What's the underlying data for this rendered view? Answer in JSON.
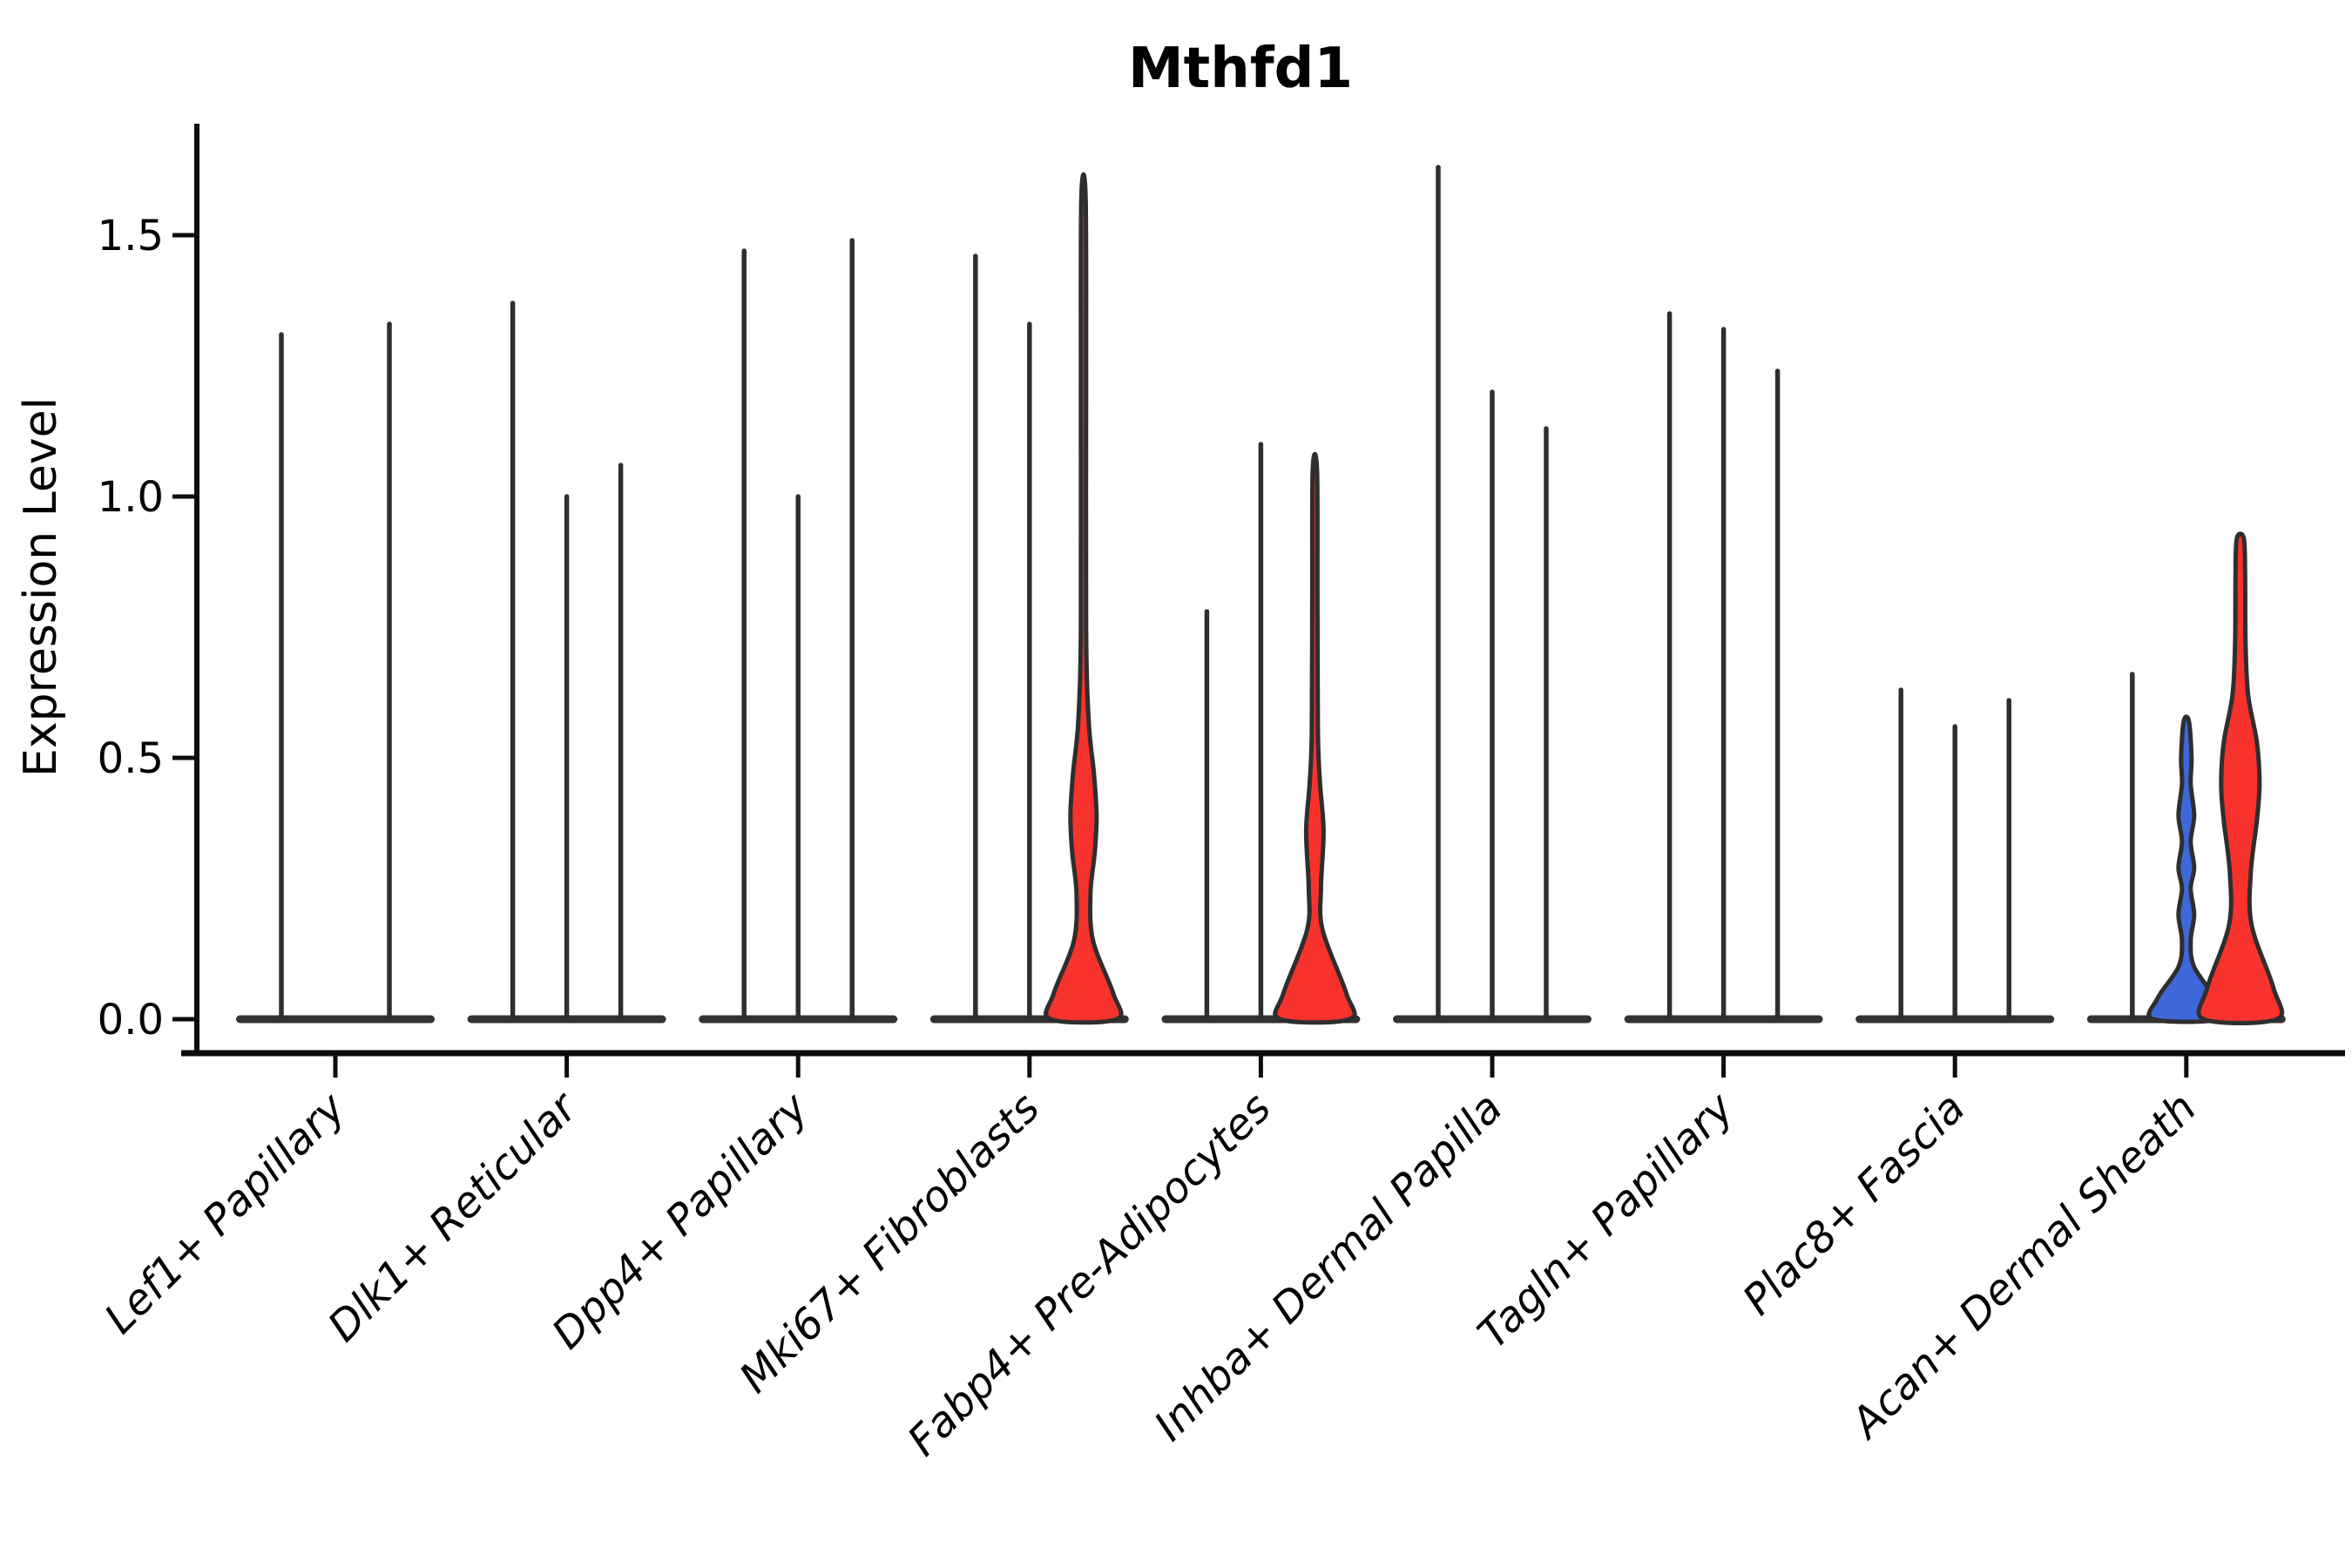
{
  "title": "Mthfd1",
  "ylabel": "Expression Level",
  "colors": {
    "red": "#f8322c",
    "blue": "#3e68da",
    "violin_stroke": "#2e2e2e",
    "spine": "#0d0d0d",
    "baseline": "#333333"
  },
  "chart_data": {
    "type": "violin",
    "title": "Mthfd1",
    "xlabel": "",
    "ylabel": "Expression Level",
    "ylim": [
      0,
      1.72
    ],
    "grid": false,
    "legend": "none",
    "yticks": [
      {
        "v": 0.0,
        "label": "0.0"
      },
      {
        "v": 0.5,
        "label": "0.5"
      },
      {
        "v": 1.0,
        "label": "1.0"
      },
      {
        "v": 1.5,
        "label": "1.5"
      }
    ],
    "categories": [
      "Lef1+ Papillary",
      "Dlk1+ Reticular",
      "Dpp4+ Papillary",
      "Mki67+ Fibroblasts",
      "Fabp4+ Pre-Adipocytes",
      "Inhba+ Dermal Papilla",
      "Tagln+ Papillary",
      "Plac8+ Fascia",
      "Acan+ Dermal Sheath"
    ],
    "note": "Each category holds up to 3 violins; most are near-zero-width spikes (all cells ~0 expression). 'max' is the top of each violin in expression units; colored violins carry a width profile [expression, half_width_px].",
    "groups": [
      {
        "label": "Lef1+ Papillary",
        "violins": [
          {
            "slot": 1,
            "max": 1.31,
            "style": "line"
          },
          {
            "slot": 3,
            "max": 1.33,
            "style": "line"
          }
        ]
      },
      {
        "label": "Dlk1+ Reticular",
        "violins": [
          {
            "slot": 1,
            "max": 1.37,
            "style": "line"
          },
          {
            "slot": 2,
            "max": 1.0,
            "style": "line"
          },
          {
            "slot": 3,
            "max": 1.06,
            "style": "line"
          }
        ]
      },
      {
        "label": "Dpp4+ Papillary",
        "violins": [
          {
            "slot": 1,
            "max": 1.47,
            "style": "line"
          },
          {
            "slot": 2,
            "max": 1.0,
            "style": "line"
          },
          {
            "slot": 3,
            "max": 1.49,
            "style": "line"
          }
        ]
      },
      {
        "label": "Mki67+ Fibroblasts",
        "violins": [
          {
            "slot": 1,
            "max": 1.46,
            "style": "line"
          },
          {
            "slot": 2,
            "max": 1.33,
            "style": "line"
          },
          {
            "slot": 3,
            "max": 1.57,
            "style": "shape",
            "fill": "red",
            "profile": [
              [
                0,
                38
              ],
              [
                0.05,
                34
              ],
              [
                0.15,
                11
              ],
              [
                0.24,
                8
              ],
              [
                0.32,
                13
              ],
              [
                0.39,
                15
              ],
              [
                0.47,
                12
              ],
              [
                0.57,
                6
              ],
              [
                0.75,
                3
              ],
              [
                1.2,
                3
              ],
              [
                1.57,
                2.5
              ]
            ]
          }
        ]
      },
      {
        "label": "Fabp4+ Pre-Adipocytes",
        "violins": [
          {
            "slot": 1,
            "max": 0.78,
            "style": "line"
          },
          {
            "slot": 2,
            "max": 1.1,
            "style": "line"
          },
          {
            "slot": 3,
            "max": 1.05,
            "style": "shape",
            "fill": "red",
            "profile": [
              [
                0,
                40
              ],
              [
                0.05,
                36
              ],
              [
                0.17,
                9
              ],
              [
                0.25,
                7
              ],
              [
                0.36,
                10
              ],
              [
                0.45,
                6
              ],
              [
                0.55,
                3.5
              ],
              [
                0.8,
                3
              ],
              [
                1.05,
                2.5
              ]
            ]
          }
        ]
      },
      {
        "label": "Inhba+ Dermal Papilla",
        "violins": [
          {
            "slot": 1,
            "max": 1.63,
            "style": "line"
          },
          {
            "slot": 2,
            "max": 1.2,
            "style": "line"
          },
          {
            "slot": 3,
            "max": 1.13,
            "style": "line"
          }
        ]
      },
      {
        "label": "Tagln+ Papillary",
        "violins": [
          {
            "slot": 1,
            "max": 1.35,
            "style": "line"
          },
          {
            "slot": 2,
            "max": 1.32,
            "style": "line"
          },
          {
            "slot": 3,
            "max": 1.24,
            "style": "line"
          }
        ]
      },
      {
        "label": "Plac8+ Fascia",
        "violins": [
          {
            "slot": 1,
            "max": 0.63,
            "style": "line"
          },
          {
            "slot": 2,
            "max": 0.56,
            "style": "line"
          },
          {
            "slot": 3,
            "max": 0.61,
            "style": "line"
          }
        ]
      },
      {
        "label": "Acan+ Dermal Sheath",
        "violins": [
          {
            "slot": 1,
            "max": 0.66,
            "style": "line"
          },
          {
            "slot": 2,
            "max": 0.57,
            "style": "shape",
            "fill": "blue",
            "profile": [
              [
                0,
                38
              ],
              [
                0.04,
                33
              ],
              [
                0.1,
                9
              ],
              [
                0.15,
                5
              ],
              [
                0.2,
                9
              ],
              [
                0.25,
                5
              ],
              [
                0.29,
                9
              ],
              [
                0.34,
                5
              ],
              [
                0.39,
                9
              ],
              [
                0.45,
                5
              ],
              [
                0.5,
                6
              ],
              [
                0.57,
                3
              ]
            ]
          },
          {
            "slot": 3,
            "max": 0.92,
            "style": "shape",
            "fill": "red",
            "profile": [
              [
                0,
                42
              ],
              [
                0.06,
                38
              ],
              [
                0.18,
                13
              ],
              [
                0.28,
                12
              ],
              [
                0.38,
                19
              ],
              [
                0.45,
                22
              ],
              [
                0.53,
                19
              ],
              [
                0.62,
                9
              ],
              [
                0.72,
                6
              ],
              [
                0.85,
                5.5
              ],
              [
                0.92,
                4
              ]
            ]
          }
        ]
      }
    ]
  }
}
